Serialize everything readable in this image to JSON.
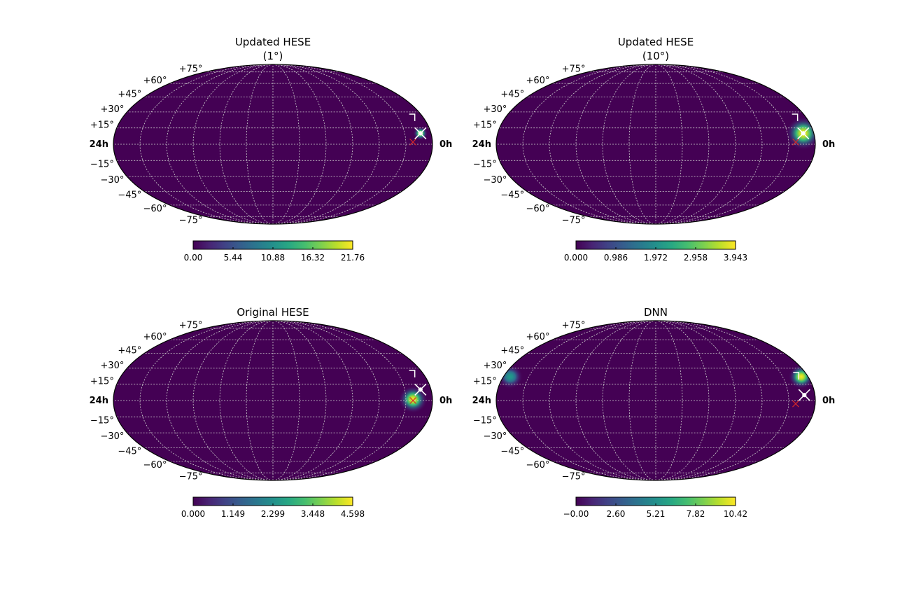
{
  "figure": {
    "colormap": "viridis",
    "background_color": "#440154",
    "grid_color": "#cfcfcf",
    "source_marker_color": "#ffffff",
    "reference_marker_color": "#d62728"
  },
  "chart_data": [
    {
      "type": "heatmap",
      "projection": "mollweide",
      "title": "Updated HESE",
      "subtitle": "(1°)",
      "ra_labels": {
        "left": "24h",
        "right": "0h"
      },
      "lat_labels": [
        "+75°",
        "+60°",
        "+45°",
        "+30°",
        "+15°",
        "−15°",
        "−30°",
        "−45°",
        "−60°",
        "−75°"
      ],
      "grid": true,
      "colorbar": {
        "ticks": [
          "0.00",
          "5.44",
          "10.88",
          "16.32",
          "21.76"
        ],
        "range": [
          0,
          21.76
        ]
      },
      "hotspots": [
        {
          "ra_deg": 12,
          "dec_deg": 10,
          "sigma_deg": 4.5,
          "peak": 1.0
        }
      ],
      "markers": [
        {
          "kind": "star",
          "ra_deg": 12,
          "dec_deg": 10
        },
        {
          "kind": "arrow",
          "ra_deg": 14,
          "dec_deg": 22
        },
        {
          "kind": "x",
          "ra_deg": 22,
          "dec_deg": 2
        }
      ]
    },
    {
      "type": "heatmap",
      "projection": "mollweide",
      "title": "Updated HESE",
      "subtitle": "(10°)",
      "ra_labels": {
        "left": "24h",
        "right": "0h"
      },
      "lat_labels": [
        "+75°",
        "+60°",
        "+45°",
        "+30°",
        "+15°",
        "−15°",
        "−30°",
        "−45°",
        "−60°",
        "−75°"
      ],
      "grid": true,
      "colorbar": {
        "ticks": [
          "0.000",
          "0.986",
          "1.972",
          "2.958",
          "3.943"
        ],
        "range": [
          0,
          3.943
        ]
      },
      "hotspots": [
        {
          "ra_deg": 12,
          "dec_deg": 10,
          "sigma_deg": 11,
          "peak": 1.0
        }
      ],
      "markers": [
        {
          "kind": "star",
          "ra_deg": 12,
          "dec_deg": 10
        },
        {
          "kind": "arrow",
          "ra_deg": 14,
          "dec_deg": 22
        },
        {
          "kind": "x",
          "ra_deg": 22,
          "dec_deg": 2
        }
      ]
    },
    {
      "type": "heatmap",
      "projection": "mollweide",
      "title": "Original HESE",
      "subtitle": "",
      "ra_labels": {
        "left": "24h",
        "right": "0h"
      },
      "lat_labels": [
        "+75°",
        "+60°",
        "+45°",
        "+30°",
        "+15°",
        "−15°",
        "−30°",
        "−45°",
        "−60°",
        "−75°"
      ],
      "grid": true,
      "colorbar": {
        "ticks": [
          "0.000",
          "1.149",
          "2.299",
          "3.448",
          "4.598"
        ],
        "range": [
          0,
          4.598
        ]
      },
      "hotspots": [
        {
          "ra_deg": 22,
          "dec_deg": 1,
          "sigma_deg": 9,
          "peak": 1.0
        }
      ],
      "markers": [
        {
          "kind": "star",
          "ra_deg": 12,
          "dec_deg": 10
        },
        {
          "kind": "arrow",
          "ra_deg": 14,
          "dec_deg": 22
        },
        {
          "kind": "x",
          "ra_deg": 22,
          "dec_deg": 0
        }
      ]
    },
    {
      "type": "heatmap",
      "projection": "mollweide",
      "title": "DNN",
      "subtitle": "",
      "ra_labels": {
        "left": "24h",
        "right": "0h"
      },
      "lat_labels": [
        "+75°",
        "+60°",
        "+45°",
        "+30°",
        "+15°",
        "−15°",
        "−30°",
        "−45°",
        "−60°",
        "−75°"
      ],
      "grid": true,
      "colorbar": {
        "ticks": [
          "−0.00",
          "2.60",
          "5.21",
          "7.82",
          "10.42"
        ],
        "range": [
          0,
          10.42
        ]
      },
      "hotspots": [
        {
          "ra_deg": 8,
          "dec_deg": 22,
          "sigma_deg": 8,
          "peak": 1.0
        },
        {
          "ra_deg": 352,
          "dec_deg": 22,
          "sigma_deg": 8,
          "peak": 0.55
        }
      ],
      "markers": [
        {
          "kind": "star",
          "ra_deg": 12,
          "dec_deg": 5
        },
        {
          "kind": "arrow",
          "ra_deg": 14,
          "dec_deg": 20
        },
        {
          "kind": "x",
          "ra_deg": 22,
          "dec_deg": -3
        }
      ]
    }
  ]
}
